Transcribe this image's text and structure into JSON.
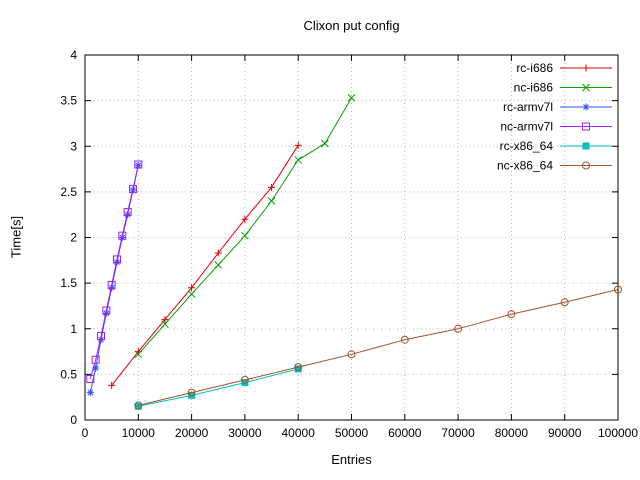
{
  "chart_data": {
    "type": "line",
    "title": "Clixon put config",
    "xlabel": "Entries",
    "ylabel": "Time[s]",
    "xlim": [
      0,
      100000
    ],
    "ylim": [
      0,
      4
    ],
    "grid": true,
    "legend_position": "top-right-inside",
    "xticks": {
      "values": [
        0,
        10000,
        20000,
        30000,
        40000,
        50000,
        60000,
        70000,
        80000,
        90000,
        100000
      ],
      "labels": [
        "0",
        "10000",
        "20000",
        "30000",
        "40000",
        "50000",
        "60000",
        "70000",
        "80000",
        "90000",
        "100000"
      ]
    },
    "yticks": {
      "values": [
        0,
        0.5,
        1,
        1.5,
        2,
        2.5,
        3,
        3.5,
        4
      ],
      "labels": [
        "0",
        "0.5",
        "1",
        "1.5",
        "2",
        "2.5",
        "3",
        "3.5",
        "4"
      ]
    },
    "colors": {
      "rc-i686": "#e00000",
      "nc-i686": "#00a000",
      "rc-armv7l": "#3050ff",
      "nc-armv7l": "#a020f0",
      "rc-x86_64": "#00c0c0",
      "nc-x86_64": "#a0522d"
    },
    "series": [
      {
        "name": "rc-i686",
        "color": "#e00000",
        "marker": "plus",
        "points": [
          [
            5000,
            0.38
          ],
          [
            10000,
            0.75
          ],
          [
            15000,
            1.1
          ],
          [
            20000,
            1.45
          ],
          [
            25000,
            1.83
          ],
          [
            30000,
            2.2
          ],
          [
            35000,
            2.55
          ],
          [
            40000,
            3.01
          ]
        ]
      },
      {
        "name": "nc-i686",
        "color": "#00a000",
        "marker": "cross",
        "points": [
          [
            10000,
            0.72
          ],
          [
            15000,
            1.05
          ],
          [
            20000,
            1.38
          ],
          [
            25000,
            1.7
          ],
          [
            30000,
            2.02
          ],
          [
            35000,
            2.4
          ],
          [
            40000,
            2.85
          ],
          [
            45000,
            3.03
          ],
          [
            50000,
            3.53
          ]
        ]
      },
      {
        "name": "rc-armv7l",
        "color": "#3050ff",
        "marker": "asterisk",
        "points": [
          [
            1000,
            0.3
          ],
          [
            2000,
            0.57
          ],
          [
            3000,
            0.88
          ],
          [
            4000,
            1.17
          ],
          [
            5000,
            1.45
          ],
          [
            6000,
            1.73
          ],
          [
            7000,
            2.0
          ],
          [
            8000,
            2.25
          ],
          [
            9000,
            2.52
          ],
          [
            10000,
            2.79
          ]
        ]
      },
      {
        "name": "nc-armv7l",
        "color": "#a020f0",
        "marker": "square-open",
        "points": [
          [
            1000,
            0.45
          ],
          [
            2000,
            0.66
          ],
          [
            3000,
            0.92
          ],
          [
            4000,
            1.2
          ],
          [
            5000,
            1.48
          ],
          [
            6000,
            1.76
          ],
          [
            7000,
            2.02
          ],
          [
            8000,
            2.28
          ],
          [
            9000,
            2.53
          ],
          [
            10000,
            2.8
          ]
        ]
      },
      {
        "name": "rc-x86_64",
        "color": "#00c0c0",
        "marker": "square-filled",
        "points": [
          [
            10000,
            0.15
          ],
          [
            20000,
            0.27
          ],
          [
            30000,
            0.41
          ],
          [
            40000,
            0.56
          ]
        ]
      },
      {
        "name": "nc-x86_64",
        "color": "#a0522d",
        "marker": "circle-open",
        "points": [
          [
            10000,
            0.16
          ],
          [
            20000,
            0.3
          ],
          [
            30000,
            0.44
          ],
          [
            40000,
            0.58
          ],
          [
            50000,
            0.72
          ],
          [
            60000,
            0.88
          ],
          [
            70000,
            1.0
          ],
          [
            80000,
            1.16
          ],
          [
            90000,
            1.29
          ],
          [
            100000,
            1.43
          ]
        ]
      }
    ]
  }
}
